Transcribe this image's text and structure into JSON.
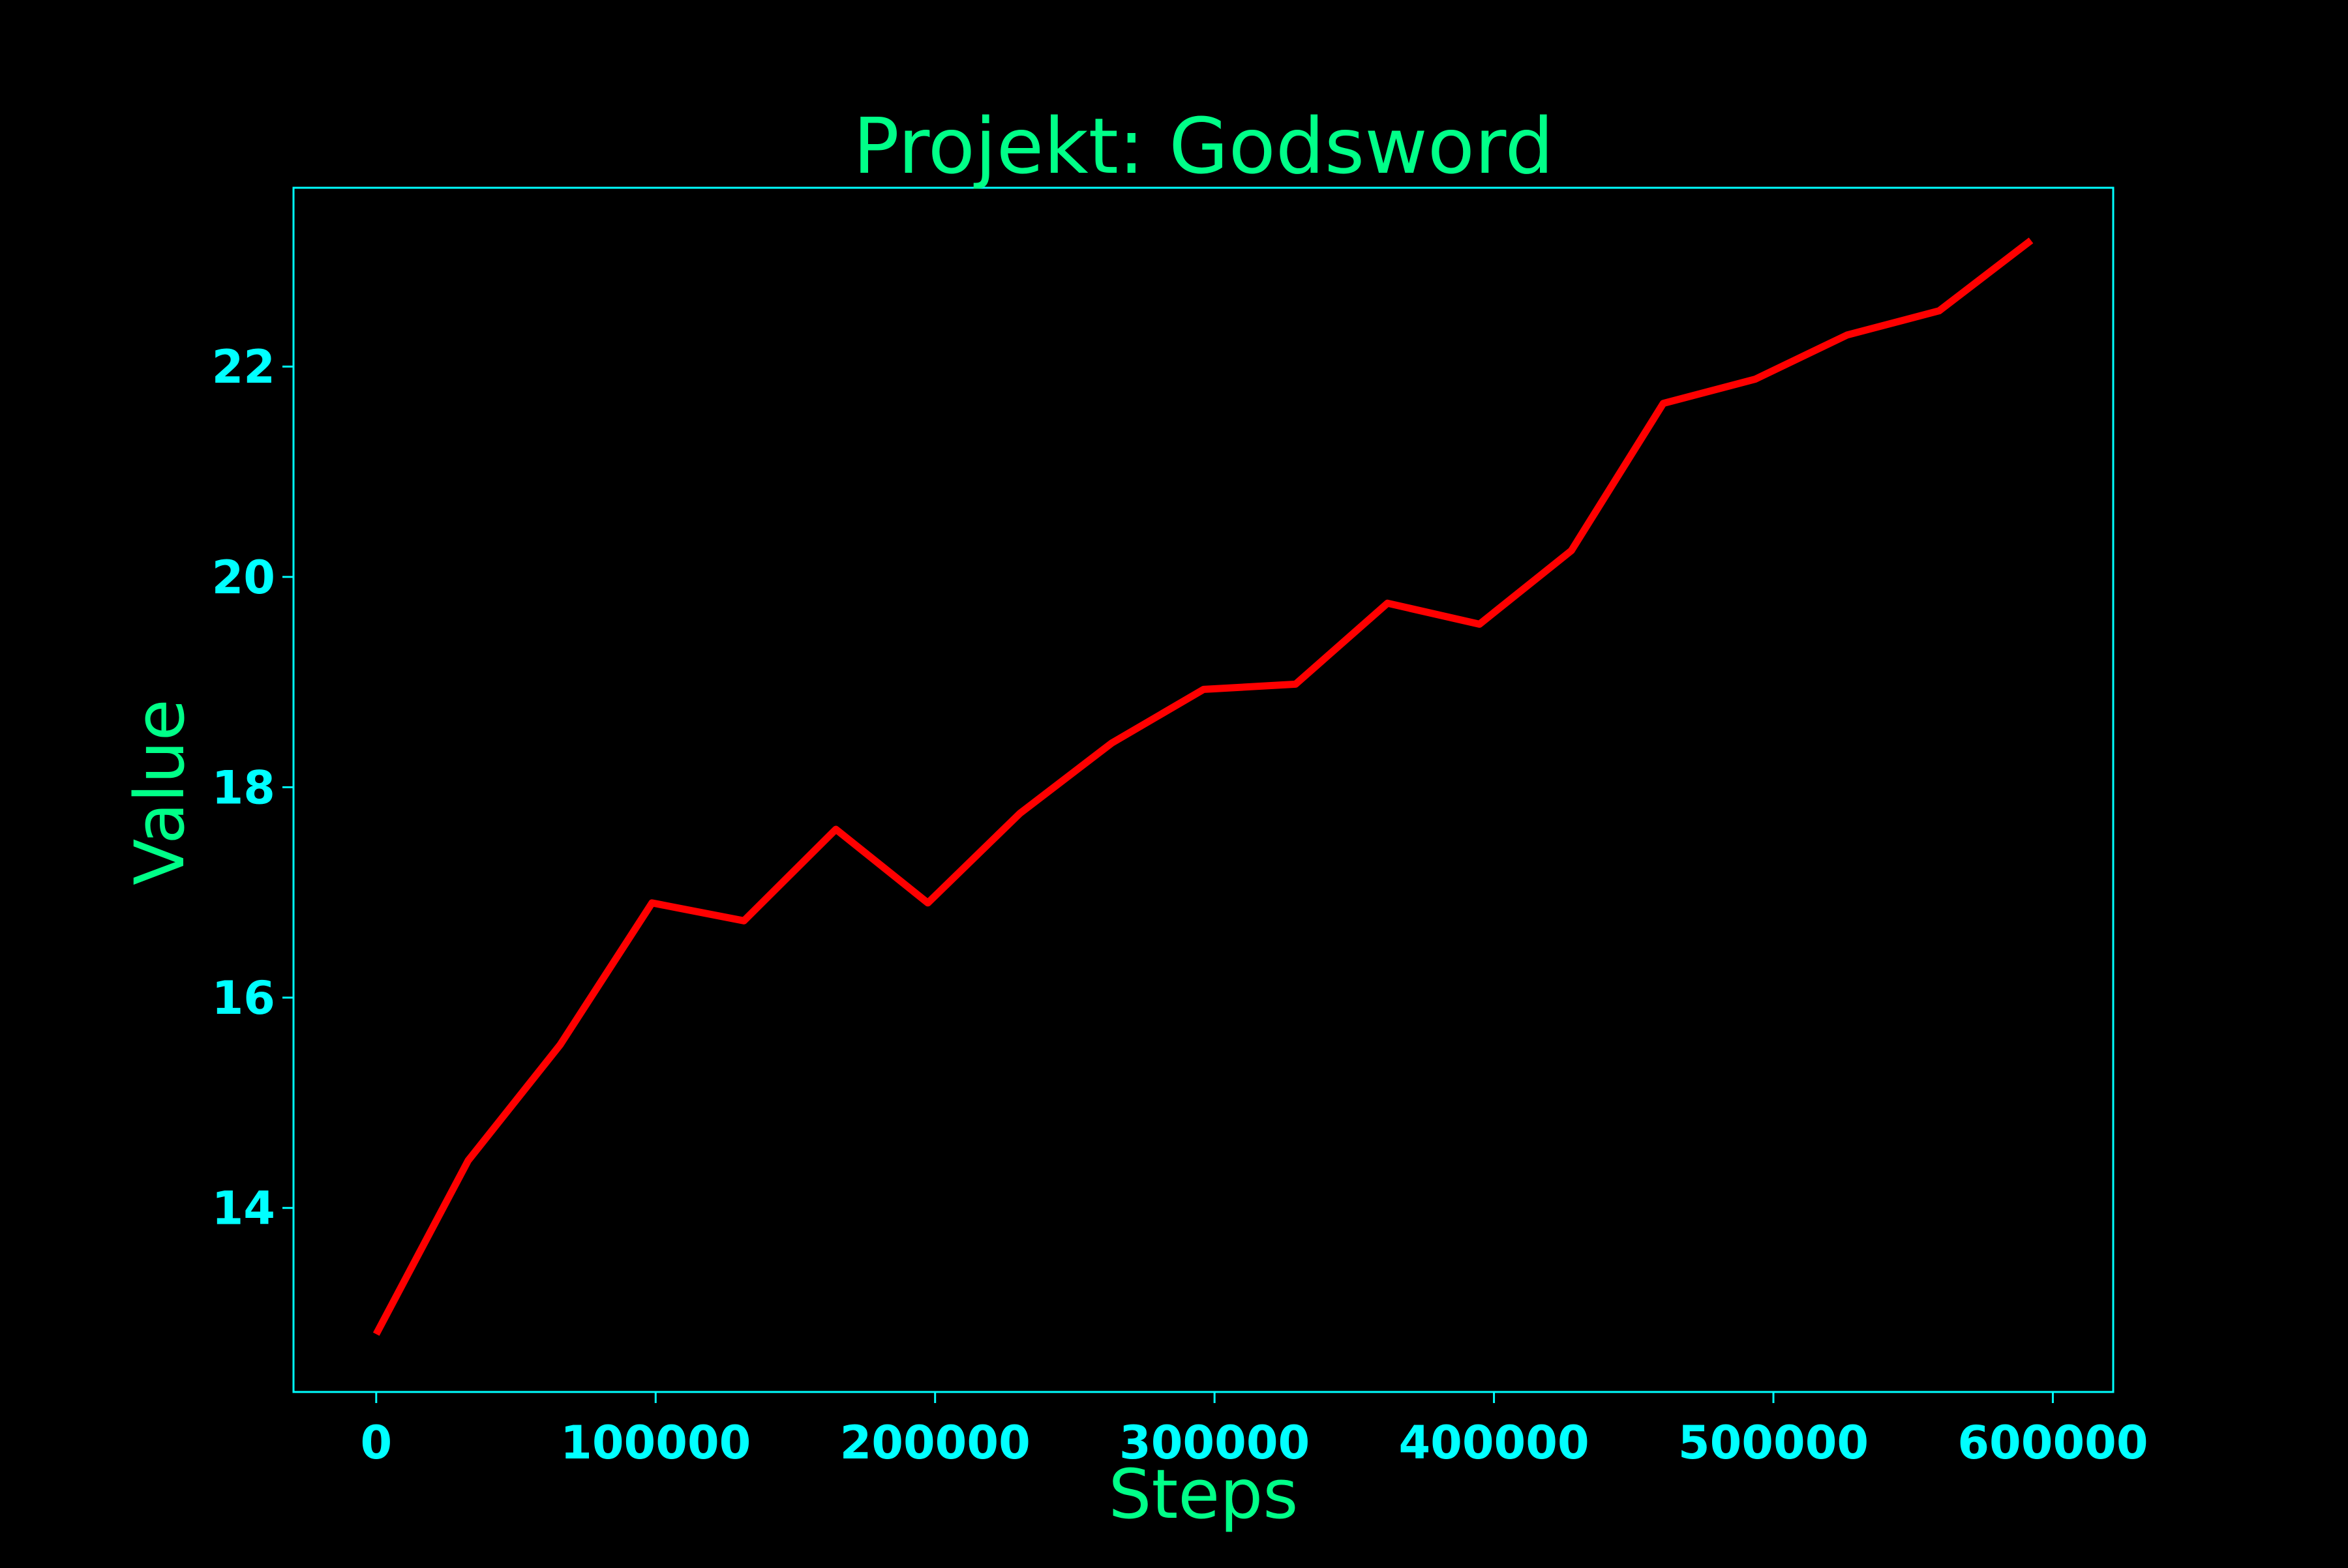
{
  "chart_data": {
    "type": "line",
    "title": "Projekt: Godsword",
    "xlabel": "Steps",
    "ylabel": "Value",
    "xlim": [
      -29600,
      621600
    ],
    "ylim": [
      12.25,
      23.7
    ],
    "xticks": [
      0,
      100000,
      200000,
      300000,
      400000,
      500000,
      600000
    ],
    "xtick_labels": [
      "0",
      "100000",
      "200000",
      "300000",
      "400000",
      "500000",
      "600000"
    ],
    "yticks": [
      14,
      16,
      18,
      20,
      22
    ],
    "ytick_labels": [
      "14",
      "16",
      "18",
      "20",
      "22"
    ],
    "grid": false,
    "legend": "none",
    "series": [
      {
        "x": [
          0,
          32900,
          65800,
          98700,
          131600,
          164500,
          197400,
          230300,
          263200,
          296100,
          329000,
          361900,
          394800,
          427700,
          460600,
          493500,
          526400,
          559300,
          592200
        ],
        "y": [
          12.8,
          14.45,
          15.55,
          16.9,
          16.73,
          17.6,
          16.9,
          17.75,
          18.42,
          18.93,
          18.98,
          19.75,
          19.55,
          20.25,
          21.65,
          21.88,
          22.3,
          22.53,
          23.2
        ]
      }
    ],
    "colors": {
      "background": "#000000",
      "line": "#ff0000",
      "frame": "#00ffff",
      "tick_text": "#00ffff",
      "title_text": "#00ff88"
    }
  }
}
